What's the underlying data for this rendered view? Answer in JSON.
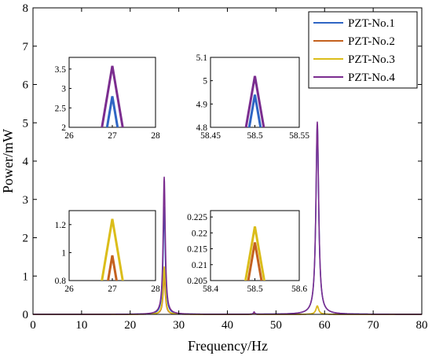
{
  "chart_data": {
    "type": "line",
    "xlabel": "Frequency/Hz",
    "ylabel": "Power/mW",
    "xlim": [
      0,
      80
    ],
    "ylim": [
      0,
      8
    ],
    "xticks": [
      0,
      10,
      20,
      30,
      40,
      50,
      60,
      70,
      80
    ],
    "yticks": [
      0,
      1,
      2,
      3,
      4,
      5,
      6,
      7,
      8
    ],
    "grid": false,
    "legend_position": "top-right",
    "colors": {
      "PZT-No.1": "#2f65c4",
      "PZT-No.2": "#c4611f",
      "PZT-No.3": "#dbbd1a",
      "PZT-No.4": "#7b2d8f"
    },
    "series": [
      {
        "name": "PZT-No.1",
        "peaks": [
          {
            "x": 27,
            "y": 2.8
          },
          {
            "x": 58.5,
            "y": 4.94
          }
        ],
        "small_peak": {
          "x": 45.5,
          "y": 0.05
        }
      },
      {
        "name": "PZT-No.2",
        "peaks": [
          {
            "x": 27,
            "y": 0.98
          },
          {
            "x": 58.5,
            "y": 0.217
          }
        ],
        "small_peak": {
          "x": 45.5,
          "y": 0.03
        }
      },
      {
        "name": "PZT-No.3",
        "peaks": [
          {
            "x": 27,
            "y": 1.24
          },
          {
            "x": 58.5,
            "y": 0.222
          }
        ],
        "small_peak": {
          "x": 45.5,
          "y": 0.04
        }
      },
      {
        "name": "PZT-No.4",
        "peaks": [
          {
            "x": 27,
            "y": 3.58
          },
          {
            "x": 58.5,
            "y": 5.02
          }
        ],
        "small_peak": {
          "x": 45.5,
          "y": 0.06
        }
      }
    ],
    "insets": [
      {
        "name": "inset-pzt4-27",
        "xlim": [
          26,
          28
        ],
        "ylim": [
          2,
          3.8
        ],
        "xticks": [
          26,
          27,
          28
        ],
        "yticks": [
          2,
          2.5,
          3,
          3.5
        ],
        "series": [
          "PZT-No.1",
          "PZT-No.4"
        ],
        "peak_x": 27
      },
      {
        "name": "inset-pzt4-58",
        "xlim": [
          58.45,
          58.55
        ],
        "ylim": [
          4.8,
          5.1
        ],
        "xticks": [
          58.45,
          58.5,
          58.55
        ],
        "yticks": [
          4.8,
          4.9,
          5,
          5.1
        ],
        "series": [
          "PZT-No.1",
          "PZT-No.4"
        ],
        "peak_x": 58.5
      },
      {
        "name": "inset-pzt3-27",
        "xlim": [
          26,
          28
        ],
        "ylim": [
          0.8,
          1.3
        ],
        "xticks": [
          26,
          27,
          28
        ],
        "yticks": [
          0.8,
          1,
          1.2
        ],
        "series": [
          "PZT-No.2",
          "PZT-No.3"
        ],
        "peak_x": 27
      },
      {
        "name": "inset-pzt3-58",
        "xlim": [
          58.4,
          58.6
        ],
        "ylim": [
          0.205,
          0.227
        ],
        "xticks": [
          58.4,
          58.5,
          58.6
        ],
        "yticks": [
          0.205,
          0.21,
          0.215,
          0.22,
          0.225
        ],
        "series": [
          "PZT-No.2",
          "PZT-No.3"
        ],
        "peak_x": 58.5
      }
    ]
  }
}
